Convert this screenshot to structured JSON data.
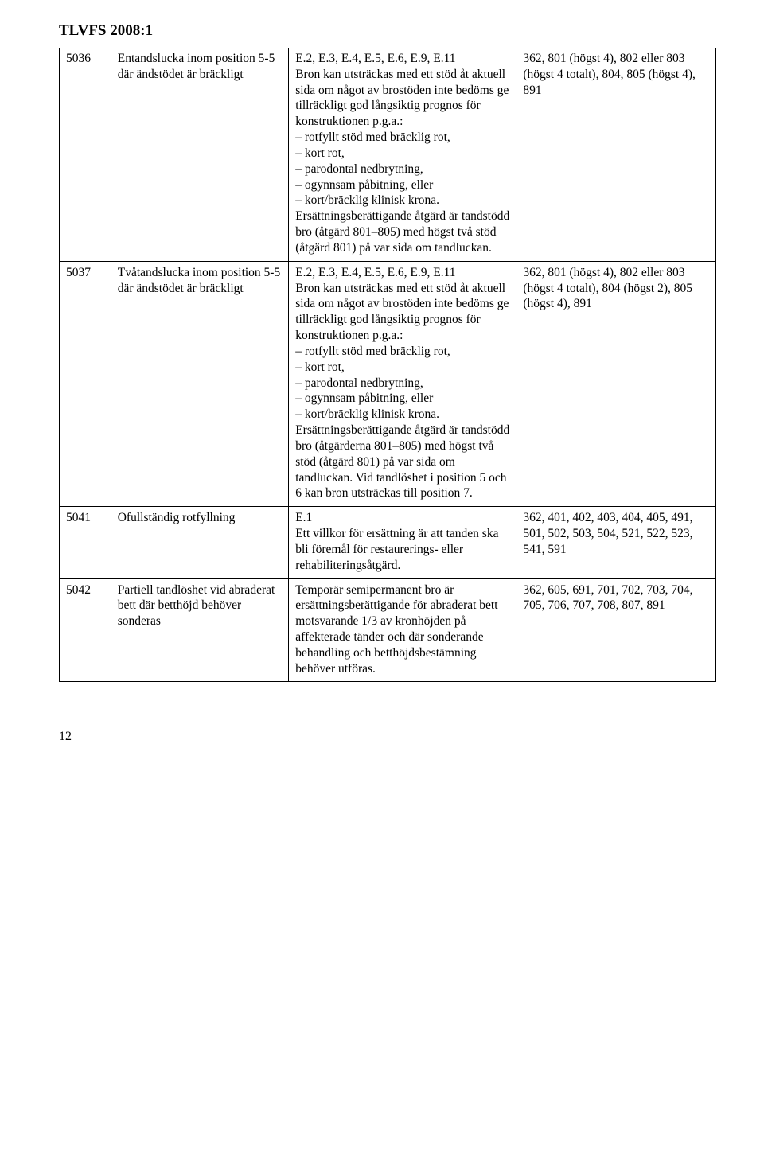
{
  "header": "TLVFS 2008:1",
  "table": {
    "columns": [
      "code",
      "title",
      "description",
      "refs"
    ],
    "rows": [
      {
        "code": "5036",
        "title": "Entandslucka inom position 5-5 där ändstödet är bräckligt",
        "description": "E.2, E.3, E.4, E.5, E.6, E.9, E.11\nBron kan utsträckas med ett stöd åt aktuell sida om något av brostöden inte bedöms ge tillräckligt god långsiktig prognos för konstruktionen p.g.a.:\n– rotfyllt stöd med bräcklig rot,\n– kort rot,\n– parodontal nedbrytning,\n– ogynnsam påbitning, eller\n– kort/bräcklig klinisk krona.\nErsättningsberättigande åtgärd är tandstödd bro (åtgärd 801–805) med högst två stöd (åtgärd 801) på var sida om tandluckan.",
        "refs": "362, 801 (högst 4), 802 eller 803 (högst 4 totalt), 804, 805 (högst 4), 891"
      },
      {
        "code": "5037",
        "title": "Tvåtandslucka inom position 5-5 där ändstödet är bräckligt",
        "description": "E.2, E.3, E.4, E.5, E.6, E.9, E.11\nBron kan utsträckas med ett stöd åt aktuell sida om något av brostöden inte bedöms ge tillräckligt god långsiktig prognos för konstruktionen p.g.a.:\n– rotfyllt stöd med bräcklig rot,\n– kort rot,\n– parodontal nedbrytning,\n– ogynnsam påbitning, eller\n– kort/bräcklig klinisk krona.\nErsättningsberättigande åtgärd är tandstödd bro (åtgärderna 801–805) med högst två stöd (åtgärd 801) på var sida om tandluckan. Vid tandlöshet i position 5 och 6 kan bron utsträckas till position 7.",
        "refs": "362, 801 (högst 4), 802 eller 803 (högst 4 totalt), 804 (högst 2), 805 (högst 4), 891"
      },
      {
        "code": "5041",
        "title": "Ofullständig rotfyllning",
        "description": "E.1\nEtt villkor för ersättning är att tanden ska bli föremål för restaurerings- eller rehabiliteringsåtgärd.",
        "refs": "362, 401, 402, 403, 404, 405, 491, 501, 502, 503, 504, 521, 522, 523, 541, 591"
      },
      {
        "code": "5042",
        "title": "Partiell tandlöshet vid abraderat bett där betthöjd behöver sonderas",
        "description": "Temporär semipermanent bro är ersättningsberättigande för abraderat bett motsvarande 1/3 av kronhöjden på affekterade tänder och där sonderande behandling och betthöjdsbestämning behöver utföras.",
        "refs": "362, 605, 691, 701, 702, 703, 704, 705, 706, 707, 708, 807, 891"
      }
    ]
  },
  "pageNumber": "12"
}
